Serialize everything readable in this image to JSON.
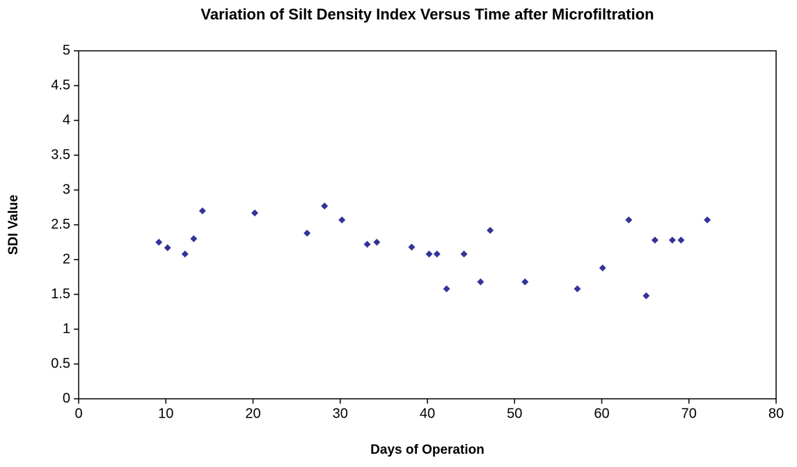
{
  "chart_data": {
    "type": "scatter",
    "title": "Variation of Silt Density Index Versus Time after Microfiltration",
    "x_label": "Days of Operation",
    "y_label": "SDI Value",
    "series": [
      {
        "name": "SDI",
        "color": "#333399",
        "x": [
          9.2,
          10.2,
          12.2,
          13.2,
          14.2,
          20.2,
          26.2,
          28.2,
          30.2,
          33.1,
          34.2,
          38.2,
          40.2,
          41.1,
          42.2,
          44.2,
          46.1,
          47.2,
          51.2,
          57.2,
          60.1,
          63.1,
          65.1,
          66.1,
          68.1,
          69.1,
          72.1
        ],
        "values": [
          2.25,
          2.17,
          2.08,
          2.3,
          2.7,
          2.67,
          2.38,
          2.77,
          2.57,
          2.22,
          2.25,
          2.18,
          2.08,
          2.08,
          1.58,
          2.08,
          1.68,
          2.42,
          1.68,
          1.58,
          1.88,
          2.57,
          1.48,
          2.28,
          2.28,
          2.28,
          2.57
        ]
      }
    ],
    "xlim": [
      0,
      80
    ],
    "xticks": [
      0,
      10,
      20,
      30,
      40,
      50,
      60,
      70,
      80
    ],
    "ylim": [
      0,
      5
    ],
    "yticks": [
      0,
      0.5,
      1,
      1.5,
      2,
      2.5,
      3,
      3.5,
      4,
      4.5,
      5
    ],
    "grid": false
  }
}
